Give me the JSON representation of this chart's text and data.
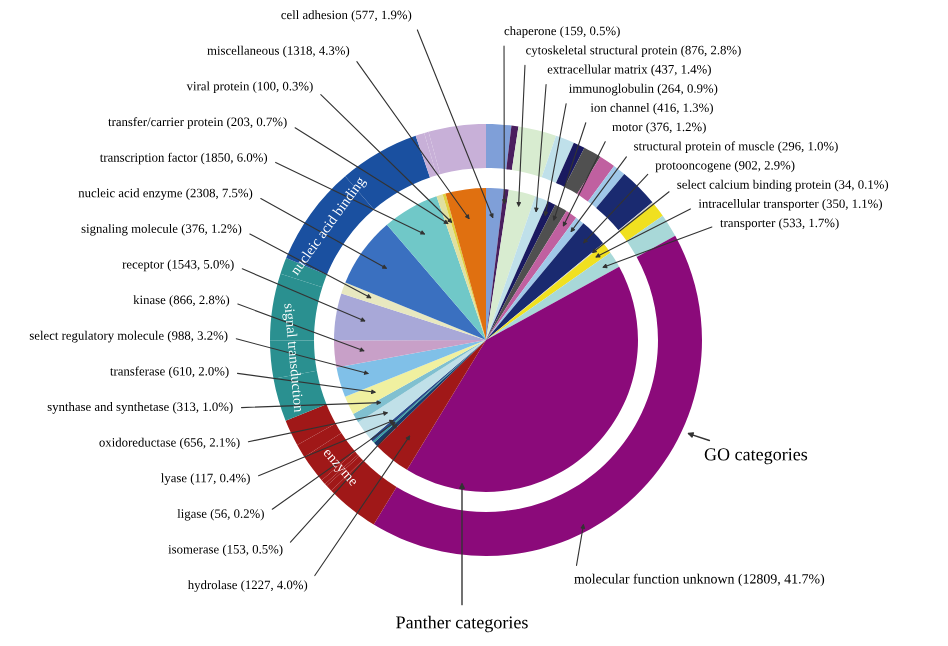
{
  "chart_data": {
    "type": "pie",
    "legend": false,
    "categories": [
      "cell adhesion",
      "chaperone",
      "cytoskeletal structural protein",
      "extracellular matrix",
      "immunoglobulin",
      "ion channel",
      "motor",
      "structural protein of muscle",
      "protooncogene",
      "select calcium binding protein",
      "intracellular transporter",
      "transporter",
      "molecular function unknown",
      "hydrolase",
      "isomerase",
      "ligase",
      "lyase",
      "oxidoreductase",
      "synthase and synthetase",
      "transferase",
      "select regulatory molecule",
      "kinase",
      "receptor",
      "signaling molecule",
      "nucleic acid enzyme",
      "transcription factor",
      "transfer/carrier protein",
      "viral protein",
      "miscellaneous"
    ],
    "series": [
      {
        "name": "Panther categories",
        "values": [
          577,
          159,
          876,
          437,
          264,
          416,
          376,
          296,
          902,
          34,
          350,
          533,
          12809,
          1227,
          153,
          56,
          117,
          656,
          313,
          610,
          988,
          866,
          1543,
          376,
          2308,
          1850,
          203,
          100,
          1318
        ],
        "value_labels": [
          "(577, 1.9%)",
          "(159, 0.5%)",
          "(876, 2.8%)",
          "(437, 1.4%)",
          "(264, 0.9%)",
          "(416, 1.3%)",
          "(376, 1.2%)",
          "(296, 1.0%)",
          "(902, 2.9%)",
          "(34, 0.1%)",
          "(350, 1.1%)",
          "(533, 1.7%)",
          "(12809, 41.7%)",
          "(1227, 4.0%)",
          "(153, 0.5%)",
          "(56, 0.2%)",
          "(117, 0.4%)",
          "(656, 2.1%)",
          "(313, 1.0%)",
          "(610, 2.0%)",
          "(988, 3.2%)",
          "(866, 2.8%)",
          "(1543, 5.0%)",
          "(376, 1.2%)",
          "(2308, 7.5%)",
          "(1850, 6.0%)",
          "(203, 0.7%)",
          "(100, 0.3%)",
          "(1318, 4.3%)"
        ],
        "colors": [
          "#7f9fd8",
          "#4a1f5e",
          "#d8ecd0",
          "#bfe0ea",
          "#1a1a60",
          "#505050",
          "#c060a0",
          "#a0c8e8",
          "#1a2a70",
          "#d0d0d0",
          "#f0e020",
          "#a8d8d8",
          "#8b0a7a",
          "#a01818",
          "#1a3a6a",
          "#30a0a0",
          "#2a4a8a",
          "#c0e0e8",
          "#80c0d0",
          "#f0f0a0",
          "#80c0e8",
          "#c8a0c8",
          "#a8a8d8",
          "#e8e8c0",
          "#3a70c0",
          "#70c8c8",
          "#e0e0a0",
          "#e0d040",
          "#e07010"
        ]
      },
      {
        "name": "GO categories",
        "type": "donut",
        "values": [
          1.88,
          0.52,
          2.85,
          1.42,
          0.86,
          1.35,
          1.22,
          0.96,
          2.94,
          0.11,
          1.14,
          1.74,
          41.71,
          4.0,
          0.5,
          0.18,
          0.38,
          2.14,
          1.02,
          1.99,
          3.22,
          2.82,
          5.02,
          1.22,
          7.51,
          6.02,
          0.66,
          0.33,
          4.29
        ],
        "colors": [
          "#7f9fd8",
          "#4a1f5e",
          "#d8ecd0",
          "#bfe0ea",
          "#1a1a60",
          "#505050",
          "#c060a0",
          "#a0c8e8",
          "#1a2a70",
          "#d0d0d0",
          "#f0e020",
          "#a8d8d8",
          "#8b0a7a",
          "#a01818",
          "#a01818",
          "#a01818",
          "#a01818",
          "#a01818",
          "#a01818",
          "#a01818",
          "#2a9090",
          "#2a9090",
          "#2a9090",
          "#2a9090",
          "#1a50a0",
          "#1a50a0",
          "#c8b0d8",
          "#c8b0d8",
          "#c8b0d8"
        ]
      }
    ],
    "annotations": [
      {
        "text": "enzyme",
        "x": "lyase"
      },
      {
        "text": "signal transduction",
        "x": "kinase"
      },
      {
        "text": "nucleic acid binding",
        "x": "nucleic acid enzyme"
      }
    ]
  }
}
